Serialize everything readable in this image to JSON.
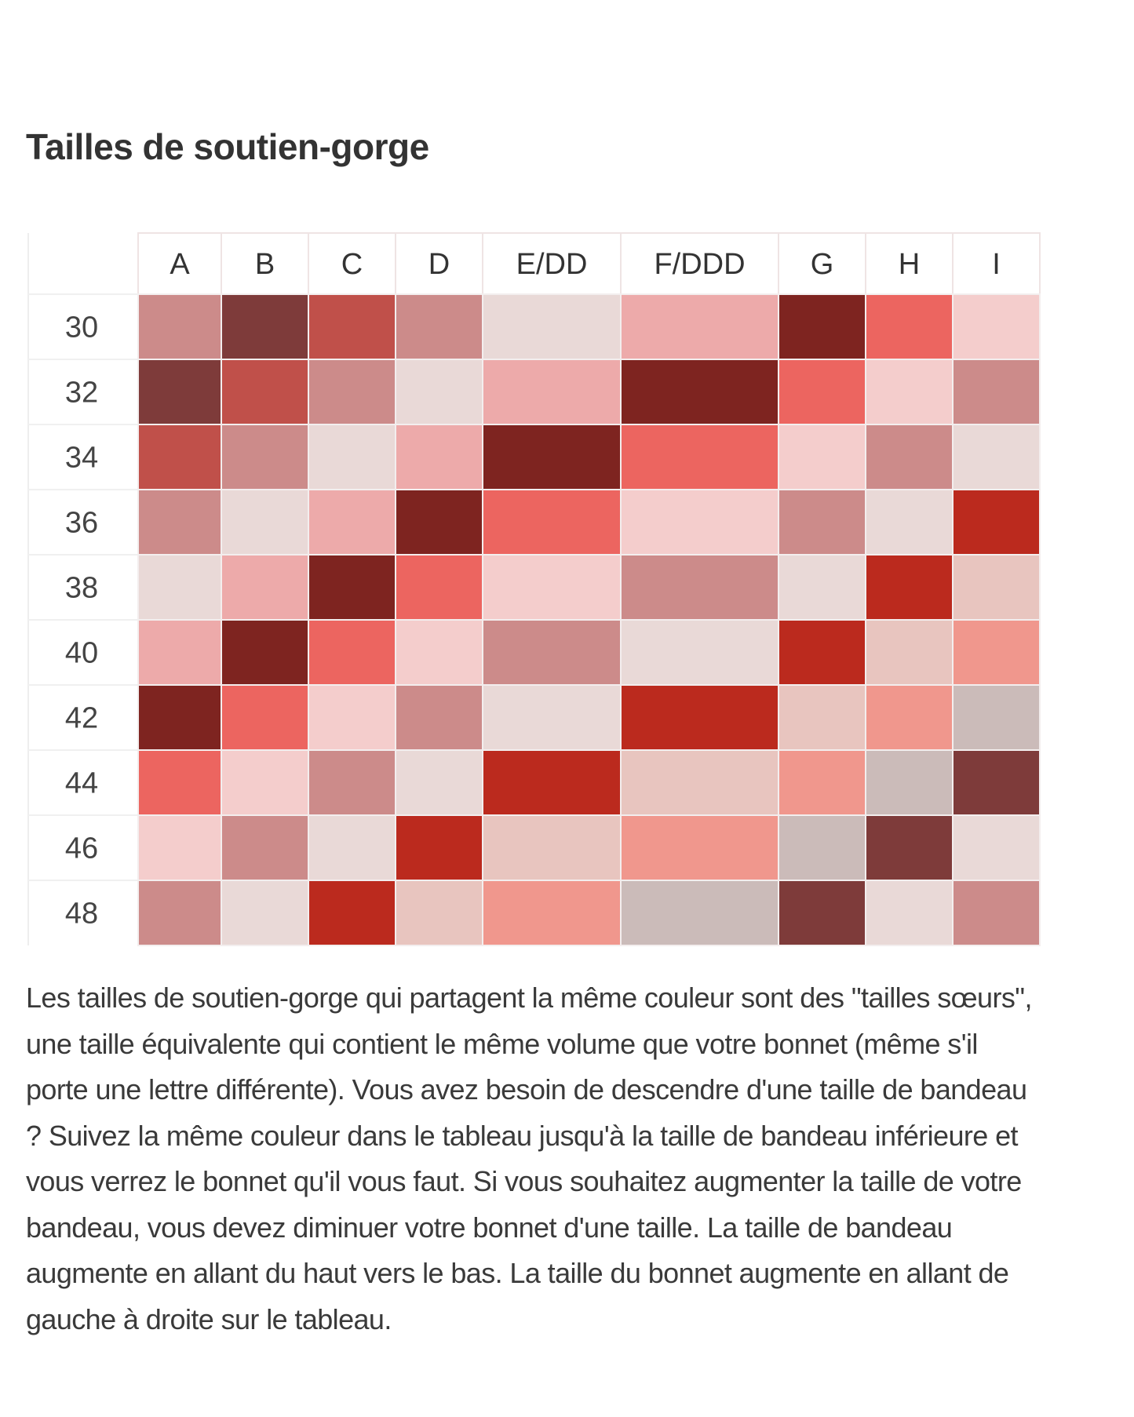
{
  "title": "Tailles de soutien-gorge",
  "chart_data": {
    "type": "heatmap",
    "columns": [
      "A",
      "B",
      "C",
      "D",
      "E/DD",
      "F/DDD",
      "G",
      "H",
      "I"
    ],
    "rows": [
      "30",
      "32",
      "34",
      "36",
      "38",
      "40",
      "42",
      "44",
      "46",
      "48"
    ],
    "palette": {
      "M": "#7e3b3a",
      "K": "#7e2420",
      "R": "#c0504a",
      "D": "#cc8b8a",
      "L": "#e9d9d7",
      "P": "#edaaaa",
      "C": "#ec6560",
      "S": "#f4cdcc",
      "V": "#bb2a1e",
      "B": "#e8c5bf",
      "O": "#f0978d",
      "G": "#cbbbb9"
    },
    "cells": [
      [
        "D",
        "M",
        "R",
        "D",
        "L",
        "P",
        "K",
        "C",
        "S"
      ],
      [
        "M",
        "R",
        "D",
        "L",
        "P",
        "K",
        "C",
        "S",
        "D"
      ],
      [
        "R",
        "D",
        "L",
        "P",
        "K",
        "C",
        "S",
        "D",
        "L"
      ],
      [
        "D",
        "L",
        "P",
        "K",
        "C",
        "S",
        "D",
        "L",
        "V"
      ],
      [
        "L",
        "P",
        "K",
        "C",
        "S",
        "D",
        "L",
        "V",
        "B"
      ],
      [
        "P",
        "K",
        "C",
        "S",
        "D",
        "L",
        "V",
        "B",
        "O"
      ],
      [
        "K",
        "C",
        "S",
        "D",
        "L",
        "V",
        "B",
        "O",
        "G"
      ],
      [
        "C",
        "S",
        "D",
        "L",
        "V",
        "B",
        "O",
        "G",
        "M"
      ],
      [
        "S",
        "D",
        "L",
        "V",
        "B",
        "O",
        "G",
        "M",
        "L"
      ],
      [
        "D",
        "L",
        "V",
        "B",
        "O",
        "G",
        "M",
        "L",
        "D"
      ]
    ]
  },
  "description": "Les tailles de soutien-gorge qui partagent la même couleur sont des \"tailles sœurs\", une taille équivalente qui contient le même volume que votre bonnet (même s'il porte une lettre différente). Vous avez besoin de descendre d'une taille de bandeau ? Suivez la même couleur dans le tableau jusqu'à la taille de bandeau inférieure et vous verrez le bonnet qu'il vous faut. Si vous souhaitez augmenter la taille de votre bandeau, vous devez diminuer votre bonnet d'une taille. La taille de bandeau augmente en allant du haut vers le bas. La taille du bonnet augmente en allant de gauche à droite sur le tableau."
}
